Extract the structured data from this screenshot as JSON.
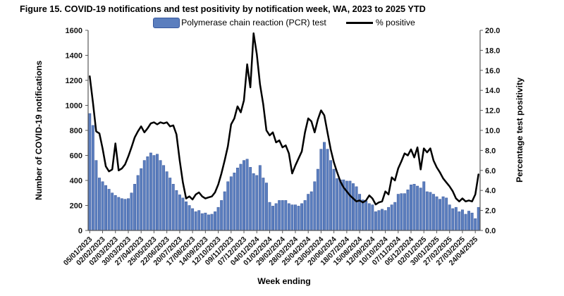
{
  "figure": {
    "title": "Figure 15. COVID-19 notifications and test positivity by notification week, WA, 2023 to 2025 YTD"
  },
  "legend": {
    "bar_label": "Polymerase chain reaction (PCR) test",
    "line_label": "% positive"
  },
  "chart_data": {
    "type": "bar",
    "subtype": "combo-bar-line-dual-axis",
    "title": "Figure 15. COVID-19 notifications and test positivity by notification week, WA, 2023 to 2025 YTD",
    "x_axis": {
      "label": "Week ending"
    },
    "left_axis": {
      "label": "Number of COVID-19 notifications",
      "min": 0,
      "max": 1600,
      "step": 200
    },
    "right_axis": {
      "label": "Percentage test positivity",
      "min": 0,
      "max": 20,
      "step": 2,
      "decimals": 1
    },
    "grid": false,
    "legend_position": "top-center",
    "axis_color": "#595959",
    "x_tick_every": 4,
    "x_tick_labels": [
      "05/01/2023",
      "02/02/2023",
      "02/03/2023",
      "30/03/2023",
      "27/04/2023",
      "25/05/2023",
      "22/06/2023",
      "20/07/2023",
      "17/08/2023",
      "14/09/2023",
      "12/10/2023",
      "09/11/2023",
      "07/12/2023",
      "04/01/2024",
      "01/02/2024",
      "29/02/2024",
      "28/03/2024",
      "25/04/2024",
      "23/05/2024",
      "20/06/2024",
      "18/07/2024",
      "15/08/2024",
      "12/09/2024",
      "10/10/2024",
      "07/11/2024",
      "05/12/2024",
      "02/01/2025",
      "30/01/2025",
      "27/02/2025",
      "27/03/2025",
      "24/04/2025"
    ],
    "series": [
      {
        "name": "Polymerase chain reaction (PCR) test",
        "type": "bar",
        "axis": "left",
        "color": "#5b7ebe",
        "stroke": "#39589d",
        "values": [
          935,
          840,
          560,
          420,
          390,
          360,
          330,
          300,
          280,
          265,
          255,
          250,
          255,
          300,
          370,
          440,
          495,
          560,
          590,
          620,
          600,
          610,
          560,
          520,
          470,
          420,
          370,
          320,
          285,
          260,
          230,
          200,
          175,
          150,
          160,
          135,
          140,
          125,
          130,
          150,
          185,
          240,
          310,
          390,
          430,
          460,
          500,
          530,
          560,
          570,
          505,
          455,
          440,
          520,
          420,
          380,
          225,
          195,
          215,
          240,
          240,
          240,
          215,
          205,
          205,
          195,
          215,
          240,
          290,
          310,
          390,
          490,
          650,
          705,
          650,
          560,
          490,
          415,
          405,
          405,
          395,
          395,
          375,
          350,
          290,
          245,
          235,
          215,
          205,
          150,
          160,
          170,
          160,
          185,
          205,
          225,
          290,
          295,
          295,
          325,
          365,
          370,
          355,
          340,
          390,
          310,
          305,
          290,
          270,
          250,
          270,
          260,
          205,
          175,
          185,
          150,
          165,
          130,
          155,
          140,
          95,
          185
        ]
      },
      {
        "name": "% positive",
        "type": "line",
        "axis": "right",
        "color": "#000000",
        "values": [
          15.4,
          12.8,
          9.9,
          9.7,
          8.2,
          6.4,
          5.9,
          6.1,
          8.7,
          6.0,
          6.2,
          6.6,
          7.4,
          8.3,
          9.3,
          9.9,
          10.4,
          9.8,
          10.2,
          10.7,
          10.8,
          10.6,
          10.8,
          10.7,
          10.8,
          10.4,
          10.5,
          9.6,
          7.0,
          4.8,
          3.2,
          3.4,
          3.1,
          3.6,
          3.8,
          3.4,
          3.2,
          3.3,
          3.4,
          3.8,
          4.6,
          5.7,
          7.0,
          8.4,
          10.6,
          11.2,
          12.4,
          11.8,
          13.0,
          16.6,
          14.3,
          19.7,
          17.6,
          14.6,
          12.6,
          10.0,
          9.5,
          9.8,
          8.8,
          9.0,
          8.3,
          8.5,
          7.7,
          5.7,
          6.5,
          7.2,
          7.9,
          9.8,
          11.2,
          10.9,
          9.8,
          11.1,
          12.0,
          11.5,
          9.8,
          8.1,
          6.8,
          5.8,
          4.9,
          4.3,
          3.9,
          3.5,
          3.2,
          2.9,
          3.0,
          2.8,
          3.0,
          3.5,
          3.2,
          2.6,
          2.8,
          2.9,
          3.9,
          3.6,
          5.3,
          5.0,
          6.2,
          6.9,
          7.7,
          7.5,
          8.1,
          7.3,
          8.3,
          6.1,
          8.2,
          7.8,
          8.2,
          7.0,
          6.3,
          5.8,
          5.2,
          4.8,
          4.4,
          3.9,
          3.2,
          2.9,
          3.2,
          2.9,
          3.0,
          2.9,
          3.6,
          5.6
        ]
      }
    ]
  }
}
